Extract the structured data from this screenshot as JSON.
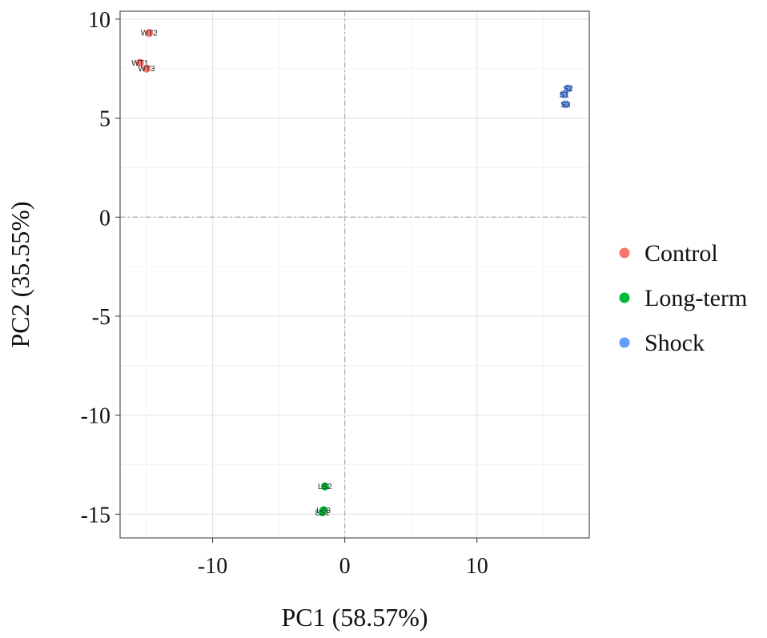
{
  "chart_data": {
    "type": "scatter",
    "xlabel": "PC1 (58.57%)",
    "ylabel": "PC2 (35.55%)",
    "xlim": [
      -17,
      18.5
    ],
    "ylim": [
      -16.2,
      10.4
    ],
    "xticks": [
      -10,
      0,
      10
    ],
    "yticks": [
      10,
      5,
      0,
      -5,
      -10,
      -15
    ],
    "grid": true,
    "reference_lines": {
      "x": 0,
      "y": 0
    },
    "legend_position": "right",
    "series": [
      {
        "name": "Control",
        "color": "#F8766D",
        "points": [
          {
            "label": "WT2",
            "x": -14.8,
            "y": 9.3
          },
          {
            "label": "WT1",
            "x": -15.5,
            "y": 7.8
          },
          {
            "label": "WT3",
            "x": -15.0,
            "y": 7.5
          }
        ]
      },
      {
        "name": "Long-term",
        "color": "#00BA38",
        "points": [
          {
            "label": "LS2",
            "x": -1.5,
            "y": -13.6
          },
          {
            "label": "LS3",
            "x": -1.6,
            "y": -14.8
          },
          {
            "label": "LS1",
            "x": -1.7,
            "y": -14.9
          }
        ]
      },
      {
        "name": "Shock",
        "color": "#619CFF",
        "points": [
          {
            "label": "S2",
            "x": 16.9,
            "y": 6.5
          },
          {
            "label": "S1",
            "x": 16.6,
            "y": 6.2
          },
          {
            "label": "S3",
            "x": 16.7,
            "y": 5.7
          }
        ]
      }
    ]
  }
}
